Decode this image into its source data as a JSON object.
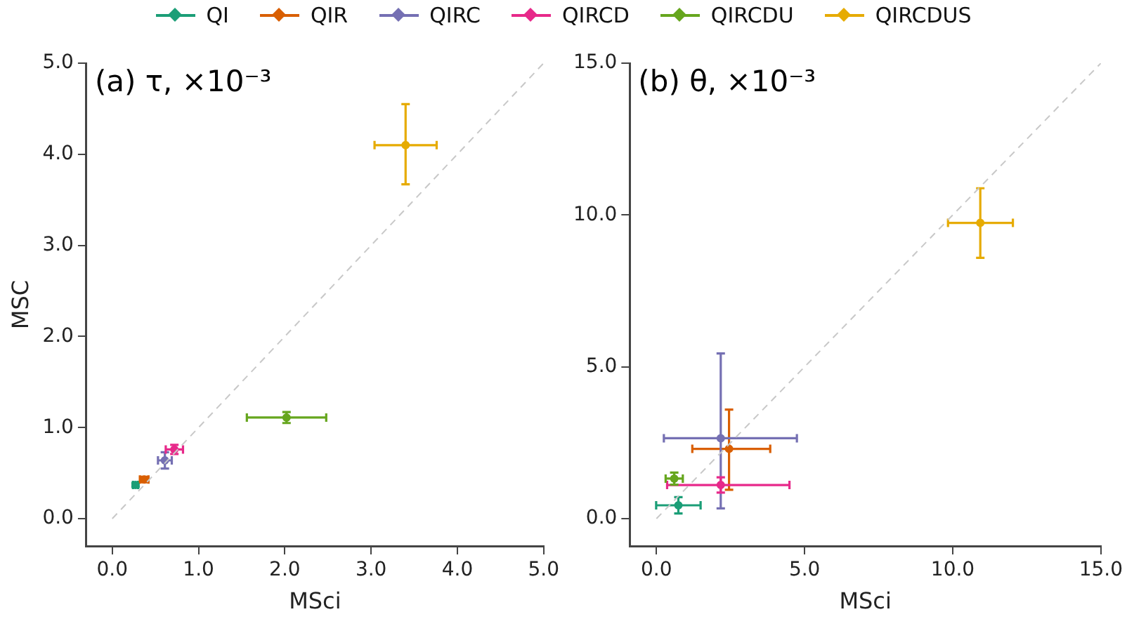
{
  "chart_data": [
    {
      "type": "scatter",
      "title": "(a) τ, ×10⁻³",
      "xlabel": "MSci",
      "ylabel": "MSC",
      "legend": "top",
      "grid": false,
      "xlim": [
        -0.3,
        5.0
      ],
      "ylim": [
        -0.3,
        5.0
      ],
      "xticks": [
        {
          "value": 0,
          "label": "0.0"
        },
        {
          "value": 1,
          "label": "1.0"
        },
        {
          "value": 2,
          "label": "2.0"
        },
        {
          "value": 3,
          "label": "3.0"
        },
        {
          "value": 4,
          "label": "4.0"
        },
        {
          "value": 5,
          "label": "5.0"
        }
      ],
      "yticks": [
        {
          "value": 0,
          "label": "0.0"
        },
        {
          "value": 1,
          "label": "1.0"
        },
        {
          "value": 2,
          "label": "2.0"
        },
        {
          "value": 3,
          "label": "3.0"
        },
        {
          "value": 4,
          "label": "4.0"
        },
        {
          "value": 5,
          "label": "5.0"
        }
      ],
      "series": [
        {
          "type": "line",
          "color": "#c8c8c8",
          "line_style": "dashed",
          "x": [
            0,
            5
          ],
          "values": [
            0,
            5
          ]
        },
        {
          "name": "QI",
          "color": "#1b9e77",
          "x": [
            0.27
          ],
          "values": [
            0.37
          ],
          "errors": [
            0.02
          ],
          "xerrors": [
            0.03
          ]
        },
        {
          "name": "QIR",
          "color": "#d95f02",
          "x": [
            0.37
          ],
          "values": [
            0.43
          ],
          "errors": [
            0.03
          ],
          "xerrors": [
            0.05
          ]
        },
        {
          "name": "QIRC",
          "color": "#7570b3",
          "x": [
            0.61
          ],
          "values": [
            0.64
          ],
          "errors": [
            0.09
          ],
          "xerrors": [
            0.08
          ]
        },
        {
          "name": "QIRCD",
          "color": "#e7298a",
          "x": [
            0.72
          ],
          "values": [
            0.76
          ],
          "errors": [
            0.05
          ],
          "xerrors": [
            0.1
          ]
        },
        {
          "name": "QIRCDU",
          "color": "#66a61e",
          "x": [
            2.02
          ],
          "values": [
            1.11
          ],
          "errors": [
            0.06
          ],
          "xerrors": [
            0.46
          ]
        },
        {
          "name": "QIRCDUS",
          "color": "#e6ab02",
          "x": [
            3.4
          ],
          "values": [
            4.1
          ],
          "errors": [
            [
              3.67,
              4.55
            ]
          ],
          "xerrors": [
            0.36
          ]
        }
      ]
    },
    {
      "type": "scatter",
      "title": "(b) θ, ×10⁻³",
      "xlabel": "MSci",
      "grid": false,
      "xlim": [
        -0.9,
        15.0
      ],
      "ylim": [
        -0.9,
        15.0
      ],
      "xticks": [
        {
          "value": 0,
          "label": "0.0"
        },
        {
          "value": 5,
          "label": "5.0"
        },
        {
          "value": 10,
          "label": "10.0"
        },
        {
          "value": 15,
          "label": "15.0"
        }
      ],
      "yticks": [
        {
          "value": 0,
          "label": "0.0"
        },
        {
          "value": 5,
          "label": "5.0"
        },
        {
          "value": 10,
          "label": "10.0"
        },
        {
          "value": 15,
          "label": "15.0"
        }
      ],
      "series": [
        {
          "type": "line",
          "color": "#c8c8c8",
          "line_style": "dashed",
          "x": [
            0,
            15
          ],
          "values": [
            0,
            15
          ]
        },
        {
          "color": "#1b9e77",
          "x": [
            0.74
          ],
          "values": [
            0.44
          ],
          "errors": [
            0.27
          ],
          "xerrors": [
            0.75
          ]
        },
        {
          "color": "#d95f02",
          "x": [
            2.45
          ],
          "values": [
            2.3
          ],
          "errors": [
            [
              0.95,
              3.59
            ]
          ],
          "xerrors": [
            [
              1.21,
              3.84
            ]
          ]
        },
        {
          "color": "#7570b3",
          "x": [
            2.17
          ],
          "values": [
            2.65
          ],
          "errors": [
            [
              0.34,
              5.44
            ]
          ],
          "xerrors": [
            [
              0.25,
              4.74
            ]
          ]
        },
        {
          "color": "#e7298a",
          "x": [
            2.17
          ],
          "values": [
            1.11
          ],
          "errors": [
            0.25
          ],
          "xerrors": [
            [
              0.36,
              4.49
            ]
          ]
        },
        {
          "color": "#66a61e",
          "x": [
            0.6
          ],
          "values": [
            1.32
          ],
          "errors": [
            0.2
          ],
          "xerrors": [
            0.29
          ]
        },
        {
          "color": "#e6ab02",
          "x": [
            10.93
          ],
          "values": [
            9.74
          ],
          "errors": [
            [
              8.59,
              10.88
            ]
          ],
          "xerrors": [
            [
              9.84,
              12.03
            ]
          ]
        }
      ]
    }
  ]
}
